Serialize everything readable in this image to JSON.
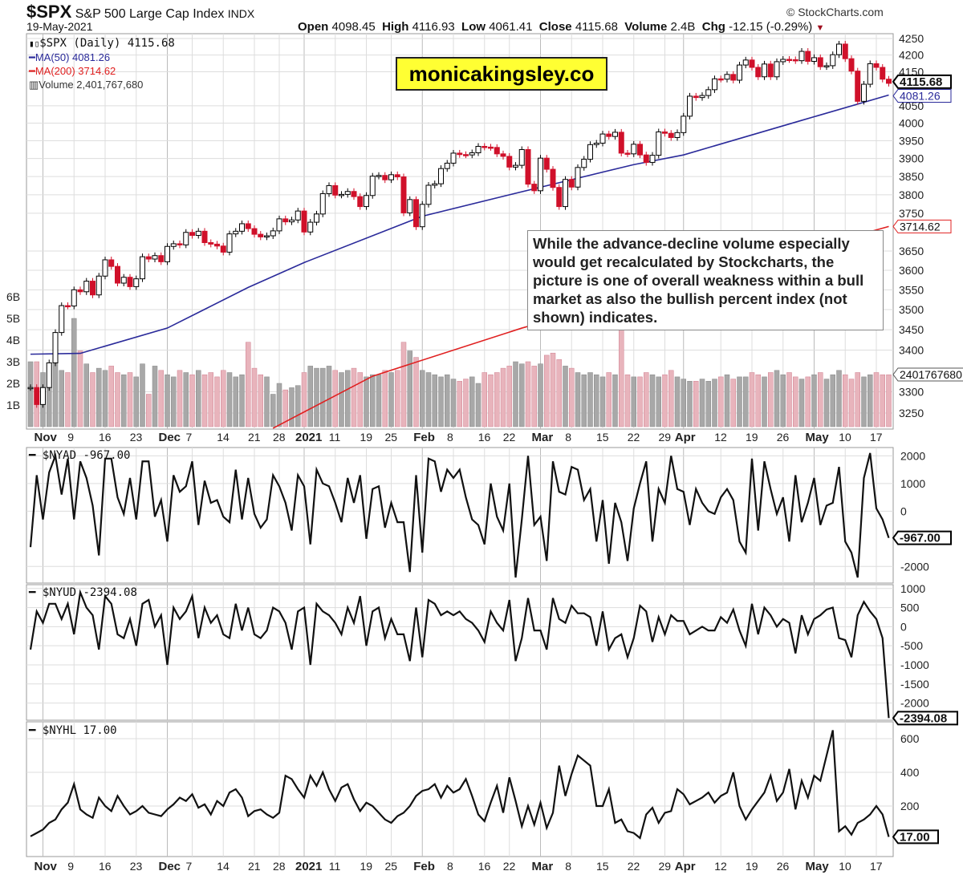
{
  "header": {
    "symbol": "$SPX",
    "name": "S&P 500 Large Cap Index",
    "exchange": "INDX",
    "date": "19-May-2021",
    "copyright": "© StockCharts.com",
    "open_label": "Open",
    "open": "4098.45",
    "high_label": "High",
    "high": "4116.93",
    "low_label": "Low",
    "low": "4061.41",
    "close_label": "Close",
    "close": "4115.68",
    "volume_label": "Volume",
    "volume": "2.4B",
    "chg_label": "Chg",
    "chg": "-12.15 (-0.29%)"
  },
  "legend": {
    "price": "$SPX (Daily) 4115.68",
    "ma50": "MA(50) 4081.26",
    "ma200": "MA(200) 3714.62",
    "volume": "Volume 2,401,767,680",
    "nyad": "$NYAD -967.00",
    "nyud": "$NYUD -2394.08",
    "nyhl": "$NYHL 17.00"
  },
  "watermark": "monicakingsley.co",
  "annotation": "While the advance-decline volume especially would get recalculated by Stockcharts, the picture is one of overall weakness within a bull market as also the bullish percent index (not shown) indicates.",
  "colors": {
    "up": "#000000",
    "down": "#d0102a",
    "ma50": "#2a2a9a",
    "ma200": "#e02020",
    "vol_up": "#a8a8a8",
    "vol_down": "#e8b4bc",
    "grid": "#dddddd"
  },
  "chart_data": [
    {
      "type": "candlestick",
      "panel": "price",
      "yscale": "log",
      "ylim": [
        3250,
        4250
      ],
      "y_ticks": [
        4250,
        4200,
        4150,
        4050,
        4000,
        3950,
        3900,
        3850,
        3800,
        3750,
        3650,
        3600,
        3550,
        3500,
        3450,
        3400,
        3300,
        3250
      ],
      "volume_ticks": [
        "1B",
        "2B",
        "3B",
        "4B",
        "5B",
        "6B"
      ],
      "x_ticks": [
        {
          "label": "Nov",
          "date": "2020-11-02",
          "bold": true
        },
        {
          "label": "9",
          "date": "2020-11-09"
        },
        {
          "label": "16",
          "date": "2020-11-16"
        },
        {
          "label": "23",
          "date": "2020-11-23"
        },
        {
          "label": "Dec",
          "date": "2020-12-01",
          "bold": true
        },
        {
          "label": "7",
          "date": "2020-12-07"
        },
        {
          "label": "14",
          "date": "2020-12-14"
        },
        {
          "label": "21",
          "date": "2020-12-21"
        },
        {
          "label": "28",
          "date": "2020-12-28"
        },
        {
          "label": "2021",
          "date": "2021-01-04",
          "bold": true
        },
        {
          "label": "11",
          "date": "2021-01-11"
        },
        {
          "label": "19",
          "date": "2021-01-19"
        },
        {
          "label": "25",
          "date": "2021-01-25"
        },
        {
          "label": "Feb",
          "date": "2021-02-01",
          "bold": true
        },
        {
          "label": "8",
          "date": "2021-02-08"
        },
        {
          "label": "16",
          "date": "2021-02-16"
        },
        {
          "label": "22",
          "date": "2021-02-22"
        },
        {
          "label": "Mar",
          "date": "2021-03-01",
          "bold": true
        },
        {
          "label": "8",
          "date": "2021-03-08"
        },
        {
          "label": "15",
          "date": "2021-03-15"
        },
        {
          "label": "22",
          "date": "2021-03-22"
        },
        {
          "label": "29",
          "date": "2021-03-29"
        },
        {
          "label": "Apr",
          "date": "2021-04-01",
          "bold": true
        },
        {
          "label": "12",
          "date": "2021-04-12"
        },
        {
          "label": "19",
          "date": "2021-04-19"
        },
        {
          "label": "26",
          "date": "2021-04-26"
        },
        {
          "label": "May",
          "date": "2021-05-03",
          "bold": true
        },
        {
          "label": "10",
          "date": "2021-05-10"
        },
        {
          "label": "17",
          "date": "2021-05-17"
        }
      ],
      "dates": [
        "2020-10-29",
        "2020-10-30",
        "2020-11-02",
        "2020-11-03",
        "2020-11-04",
        "2020-11-05",
        "2020-11-06",
        "2020-11-09",
        "2020-11-10",
        "2020-11-11",
        "2020-11-12",
        "2020-11-13",
        "2020-11-16",
        "2020-11-17",
        "2020-11-18",
        "2020-11-19",
        "2020-11-20",
        "2020-11-23",
        "2020-11-24",
        "2020-11-25",
        "2020-11-27",
        "2020-11-30",
        "2020-12-01",
        "2020-12-02",
        "2020-12-03",
        "2020-12-04",
        "2020-12-07",
        "2020-12-08",
        "2020-12-09",
        "2020-12-10",
        "2020-12-11",
        "2020-12-14",
        "2020-12-15",
        "2020-12-16",
        "2020-12-17",
        "2020-12-18",
        "2020-12-21",
        "2020-12-22",
        "2020-12-23",
        "2020-12-24",
        "2020-12-28",
        "2020-12-29",
        "2020-12-30",
        "2020-12-31",
        "2021-01-04",
        "2021-01-05",
        "2021-01-06",
        "2021-01-07",
        "2021-01-08",
        "2021-01-11",
        "2021-01-12",
        "2021-01-13",
        "2021-01-14",
        "2021-01-15",
        "2021-01-19",
        "2021-01-20",
        "2021-01-21",
        "2021-01-22",
        "2021-01-25",
        "2021-01-26",
        "2021-01-27",
        "2021-01-28",
        "2021-01-29",
        "2021-02-01",
        "2021-02-02",
        "2021-02-03",
        "2021-02-04",
        "2021-02-05",
        "2021-02-08",
        "2021-02-09",
        "2021-02-10",
        "2021-02-11",
        "2021-02-12",
        "2021-02-16",
        "2021-02-17",
        "2021-02-18",
        "2021-02-19",
        "2021-02-22",
        "2021-02-23",
        "2021-02-24",
        "2021-02-25",
        "2021-02-26",
        "2021-03-01",
        "2021-03-02",
        "2021-03-03",
        "2021-03-04",
        "2021-03-05",
        "2021-03-08",
        "2021-03-09",
        "2021-03-10",
        "2021-03-11",
        "2021-03-12",
        "2021-03-15",
        "2021-03-16",
        "2021-03-17",
        "2021-03-18",
        "2021-03-19",
        "2021-03-22",
        "2021-03-23",
        "2021-03-24",
        "2021-03-25",
        "2021-03-26",
        "2021-03-29",
        "2021-03-30",
        "2021-03-31",
        "2021-04-01",
        "2021-04-05",
        "2021-04-06",
        "2021-04-07",
        "2021-04-08",
        "2021-04-09",
        "2021-04-12",
        "2021-04-13",
        "2021-04-14",
        "2021-04-15",
        "2021-04-16",
        "2021-04-19",
        "2021-04-20",
        "2021-04-21",
        "2021-04-22",
        "2021-04-23",
        "2021-04-26",
        "2021-04-27",
        "2021-04-28",
        "2021-04-29",
        "2021-04-30",
        "2021-05-03",
        "2021-05-04",
        "2021-05-05",
        "2021-05-06",
        "2021-05-07",
        "2021-05-10",
        "2021-05-11",
        "2021-05-12",
        "2021-05-13",
        "2021-05-14",
        "2021-05-17",
        "2021-05-18",
        "2021-05-19"
      ],
      "close": [
        3310,
        3270,
        3310,
        3369,
        3443,
        3510,
        3509,
        3550,
        3545,
        3572,
        3537,
        3585,
        3627,
        3610,
        3567,
        3582,
        3558,
        3578,
        3635,
        3629,
        3638,
        3622,
        3662,
        3669,
        3666,
        3699,
        3691,
        3702,
        3672,
        3668,
        3663,
        3647,
        3695,
        3702,
        3722,
        3709,
        3694,
        3687,
        3690,
        3703,
        3735,
        3727,
        3732,
        3756,
        3700,
        3726,
        3748,
        3803,
        3825,
        3799,
        3801,
        3809,
        3795,
        3768,
        3798,
        3851,
        3853,
        3841,
        3855,
        3849,
        3751,
        3787,
        3714,
        3774,
        3826,
        3830,
        3872,
        3887,
        3915,
        3911,
        3910,
        3916,
        3934,
        3932,
        3931,
        3913,
        3906,
        3876,
        3881,
        3925,
        3829,
        3811,
        3901,
        3870,
        3820,
        3768,
        3842,
        3821,
        3875,
        3898,
        3939,
        3943,
        3969,
        3962,
        3974,
        3915,
        3913,
        3940,
        3910,
        3889,
        3909,
        3975,
        3971,
        3959,
        3973,
        4020,
        4078,
        4074,
        4080,
        4097,
        4129,
        4128,
        4142,
        4125,
        4170,
        4185,
        4163,
        4135,
        4173,
        4135,
        4180,
        4187,
        4186,
        4183,
        4211,
        4181,
        4192,
        4165,
        4168,
        4201,
        4233,
        4189,
        4152,
        4063,
        4113,
        4174,
        4163,
        4128,
        4115.68
      ],
      "volume_b": [
        3.0,
        3.0,
        2.5,
        2.8,
        3.5,
        2.6,
        2.5,
        5.0,
        3.5,
        2.9,
        2.5,
        2.7,
        2.6,
        2.8,
        2.5,
        2.4,
        2.5,
        2.3,
        2.9,
        1.5,
        2.8,
        2.6,
        2.4,
        2.3,
        2.6,
        2.5,
        2.4,
        2.6,
        2.4,
        2.5,
        2.3,
        2.6,
        2.5,
        2.3,
        2.4,
        3.9,
        2.7,
        2.4,
        2.3,
        1.5,
        2.0,
        1.7,
        1.8,
        1.9,
        2.5,
        2.8,
        2.7,
        2.7,
        2.8,
        2.6,
        2.5,
        2.6,
        2.7,
        2.5,
        2.3,
        2.4,
        2.4,
        2.6,
        2.5,
        2.6,
        3.9,
        3.5,
        3.2,
        2.6,
        2.5,
        2.4,
        2.3,
        2.4,
        2.2,
        2.1,
        2.2,
        2.3,
        2.0,
        2.5,
        2.4,
        2.5,
        2.7,
        2.8,
        3.0,
        2.9,
        3.0,
        2.8,
        2.9,
        3.3,
        3.4,
        3.1,
        2.8,
        2.7,
        2.5,
        2.4,
        2.5,
        2.4,
        2.3,
        2.5,
        2.4,
        4.5,
        2.4,
        2.3,
        2.3,
        2.5,
        2.4,
        2.3,
        2.4,
        2.6,
        2.3,
        2.2,
        2.1,
        2.1,
        2.2,
        2.1,
        2.2,
        2.3,
        2.4,
        2.2,
        2.3,
        2.3,
        2.5,
        2.4,
        2.3,
        2.5,
        2.6,
        2.4,
        2.5,
        2.3,
        2.2,
        2.3,
        2.4,
        2.5,
        2.2,
        2.4,
        2.6,
        2.4,
        2.2,
        2.5,
        2.3,
        2.4,
        2.5,
        2.4,
        2.4
      ],
      "ma50": [
        [
          "2020-10-29",
          3390
        ],
        [
          "2020-11-10",
          3392
        ],
        [
          "2020-12-01",
          3454
        ],
        [
          "2020-12-18",
          3556
        ],
        [
          "2021-01-04",
          3620
        ],
        [
          "2021-02-01",
          3742
        ],
        [
          "2021-02-22",
          3800
        ],
        [
          "2021-03-22",
          3883
        ],
        [
          "2021-04-01",
          3910
        ],
        [
          "2021-04-29",
          4008
        ],
        [
          "2021-05-19",
          4081.26
        ]
      ],
      "ma200": [
        [
          "2020-12-24",
          3215
        ],
        [
          "2021-01-20",
          3337
        ],
        [
          "2021-02-24",
          3454
        ],
        [
          "2021-05-19",
          3714.62
        ]
      ],
      "last_tags": {
        "close": "4115.68",
        "ma50": "4081.26",
        "ma200": "3714.62",
        "volume": "2401767680"
      }
    },
    {
      "type": "line",
      "panel": "nyad",
      "ylim": [
        -2600,
        2300
      ],
      "y_ticks": [
        2000,
        1000,
        0,
        -2000
      ],
      "last_tag": "-967.00",
      "values": [
        -1300,
        1300,
        -300,
        1400,
        2000,
        600,
        1900,
        -300,
        1800,
        1200,
        200,
        -1600,
        1900,
        1900,
        500,
        -100,
        1200,
        -300,
        1800,
        1800,
        -200,
        400,
        -1100,
        1300,
        700,
        900,
        1800,
        -500,
        1100,
        300,
        400,
        -200,
        -400,
        1500,
        -300,
        1200,
        -100,
        -600,
        -300,
        1300,
        900,
        300,
        -700,
        1300,
        900,
        -1200,
        1500,
        1000,
        900,
        300,
        -400,
        1200,
        300,
        1300,
        -1000,
        800,
        900,
        -600,
        300,
        -400,
        -400,
        -2200,
        1300,
        -1500,
        1900,
        1800,
        700,
        1500,
        1200,
        1500,
        500,
        -300,
        -500,
        -1200,
        1000,
        -200,
        -700,
        1000,
        -2400,
        -300,
        2000,
        -500,
        -200,
        -1800,
        1800,
        700,
        600,
        1600,
        1500,
        400,
        800,
        -1100,
        400,
        -1900,
        300,
        -400,
        -1800,
        100,
        1000,
        1800,
        -1100,
        800,
        300,
        2000,
        800,
        700,
        -500,
        800,
        300,
        0,
        -100,
        500,
        800,
        400,
        -1100,
        -1500,
        1900,
        -700,
        1800,
        800,
        -100,
        500,
        -1100,
        1300,
        -400,
        300,
        1200,
        -500,
        200,
        300,
        1600,
        -1100,
        -1500,
        -2400,
        1200,
        2100,
        100,
        -300,
        -967
      ]
    },
    {
      "type": "line",
      "panel": "nyud",
      "ylim": [
        -2450,
        1100
      ],
      "y_ticks": [
        1000,
        500,
        0,
        -500,
        -1000,
        -1500,
        -2000
      ],
      "last_tag": "-2394.08",
      "values": [
        -600,
        400,
        100,
        600,
        600,
        200,
        600,
        -200,
        900,
        500,
        300,
        -600,
        800,
        600,
        -200,
        -300,
        200,
        -500,
        600,
        700,
        0,
        300,
        -1000,
        500,
        200,
        400,
        800,
        -300,
        500,
        100,
        300,
        -200,
        -300,
        600,
        -100,
        500,
        -200,
        -300,
        -100,
        500,
        400,
        100,
        -600,
        400,
        500,
        -1000,
        600,
        400,
        300,
        100,
        -200,
        500,
        100,
        800,
        -500,
        400,
        500,
        -300,
        200,
        -200,
        -200,
        -900,
        500,
        -800,
        700,
        600,
        300,
        400,
        300,
        400,
        200,
        100,
        -100,
        -400,
        400,
        100,
        -100,
        700,
        -900,
        -300,
        750,
        -100,
        -100,
        -600,
        750,
        200,
        100,
        550,
        350,
        350,
        250,
        -500,
        400,
        -600,
        -300,
        -200,
        -800,
        -300,
        550,
        400,
        -400,
        250,
        -200,
        300,
        150,
        150,
        -200,
        -100,
        0,
        -100,
        -100,
        250,
        100,
        450,
        -100,
        -500,
        600,
        -200,
        500,
        300,
        0,
        200,
        100,
        -700,
        300,
        -200,
        200,
        300,
        450,
        500,
        -300,
        -350,
        -800,
        300,
        650,
        400,
        200,
        -300,
        -2394.08
      ]
    },
    {
      "type": "line",
      "panel": "nyhl",
      "ylim": [
        -100,
        700
      ],
      "y_ticks": [
        600,
        400,
        200
      ],
      "last_tag": "17.00",
      "values": [
        20,
        40,
        60,
        100,
        120,
        180,
        220,
        330,
        180,
        150,
        130,
        250,
        200,
        170,
        260,
        200,
        150,
        170,
        200,
        160,
        150,
        140,
        180,
        210,
        250,
        230,
        270,
        190,
        210,
        150,
        230,
        200,
        280,
        300,
        250,
        140,
        170,
        180,
        150,
        130,
        160,
        380,
        360,
        300,
        250,
        380,
        320,
        400,
        300,
        230,
        310,
        330,
        240,
        170,
        220,
        200,
        160,
        120,
        100,
        140,
        160,
        200,
        260,
        290,
        300,
        330,
        250,
        320,
        280,
        300,
        360,
        260,
        150,
        110,
        220,
        320,
        160,
        370,
        230,
        80,
        200,
        90,
        220,
        70,
        160,
        440,
        260,
        390,
        500,
        470,
        440,
        200,
        200,
        300,
        100,
        120,
        50,
        40,
        10,
        150,
        190,
        100,
        160,
        170,
        300,
        270,
        210,
        230,
        250,
        280,
        220,
        260,
        280,
        400,
        200,
        120,
        180,
        230,
        280,
        380,
        230,
        280,
        420,
        180,
        350,
        250,
        380,
        350,
        500,
        650,
        50,
        80,
        30,
        100,
        120,
        150,
        200,
        150,
        17
      ]
    }
  ]
}
